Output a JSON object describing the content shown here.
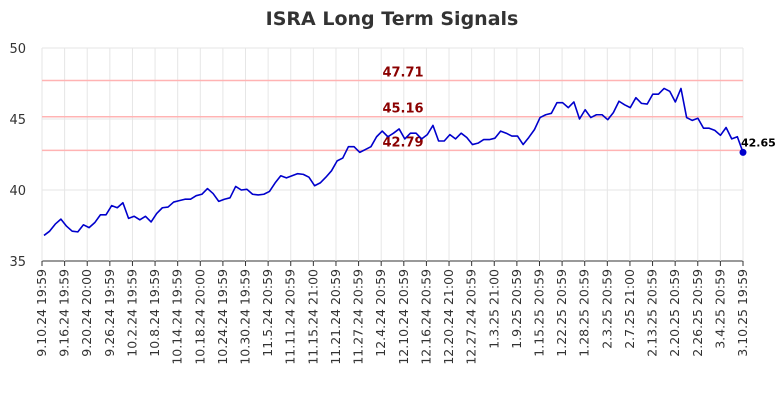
{
  "chart_data": {
    "type": "line",
    "title": "ISRA Long Term Signals",
    "xlabel": "",
    "ylabel": "",
    "ylim": [
      35,
      50
    ],
    "yticks": [
      35,
      40,
      45,
      50
    ],
    "grid": true,
    "x_tick_labels": [
      "9.10.24 19:59",
      "9.16.24 19:59",
      "9.20.24 20:00",
      "9.26.24 19:59",
      "10.2.24 19:59",
      "10.8.24 19:59",
      "10.14.24 19:59",
      "10.18.24 20:00",
      "10.24.24 19:59",
      "10.30.24 19:59",
      "11.5.24 20:59",
      "11.11.24 20:59",
      "11.15.24 21:00",
      "11.21.24 20:59",
      "11.27.24 20:59",
      "12.4.24 20:59",
      "12.10.24 20:59",
      "12.16.24 20:59",
      "12.20.24 21:00",
      "12.27.24 20:59",
      "1.3.25 21:00",
      "1.9.25 20:59",
      "1.15.25 20:59",
      "1.22.25 20:59",
      "1.28.25 20:59",
      "2.3.25 20:59",
      "2.7.25 21:00",
      "2.13.25 20:59",
      "2.20.25 20:59",
      "2.26.25 20:59",
      "3.4.25 20:59",
      "3.10.25 19:59"
    ],
    "series": [
      {
        "color": "#0000cc",
        "values": [
          36.8,
          37.1,
          37.6,
          37.95,
          37.45,
          37.1,
          37.05,
          37.55,
          37.35,
          37.7,
          38.25,
          38.25,
          38.9,
          38.75,
          39.1,
          38.0,
          38.15,
          37.9,
          38.15,
          37.75,
          38.35,
          38.75,
          38.8,
          39.15,
          39.25,
          39.35,
          39.35,
          39.6,
          39.7,
          40.1,
          39.75,
          39.2,
          39.35,
          39.45,
          40.25,
          40.0,
          40.05,
          39.7,
          39.65,
          39.7,
          39.9,
          40.5,
          41.0,
          40.85,
          41.0,
          41.15,
          41.1,
          40.9,
          40.3,
          40.5,
          40.9,
          41.35,
          42.05,
          42.25,
          43.05,
          43.05,
          42.65,
          42.85,
          43.05,
          43.75,
          44.15,
          43.75,
          44.0,
          44.3,
          43.6,
          44.0,
          44.0,
          43.6,
          43.9,
          44.55,
          43.45,
          43.45,
          43.9,
          43.6,
          44.0,
          43.7,
          43.2,
          43.3,
          43.55,
          43.55,
          43.65,
          44.15,
          44.0,
          43.8,
          43.8,
          43.2,
          43.7,
          44.25,
          45.1,
          45.3,
          45.4,
          46.15,
          46.15,
          45.8,
          46.2,
          45.0,
          45.65,
          45.1,
          45.3,
          45.3,
          44.95,
          45.45,
          46.25,
          46.0,
          45.8,
          46.5,
          46.1,
          46.05,
          46.75,
          46.75,
          47.15,
          46.95,
          46.2,
          47.15,
          45.1,
          44.9,
          45.05,
          44.35,
          44.35,
          44.2,
          43.85,
          44.4,
          43.6,
          43.75,
          42.65
        ],
        "last_value_label": "42.65"
      }
    ],
    "signal_levels": [
      {
        "value": 47.71,
        "label": "47.71"
      },
      {
        "value": 45.16,
        "label": "45.16"
      },
      {
        "value": 42.79,
        "label": "42.79"
      }
    ],
    "colors": {
      "line": "#0000cc",
      "signal_line": "#ffb3b3",
      "signal_label": "#8b0000",
      "grid": "#e6e6e6",
      "axis": "#333333",
      "title": "#333333"
    }
  }
}
